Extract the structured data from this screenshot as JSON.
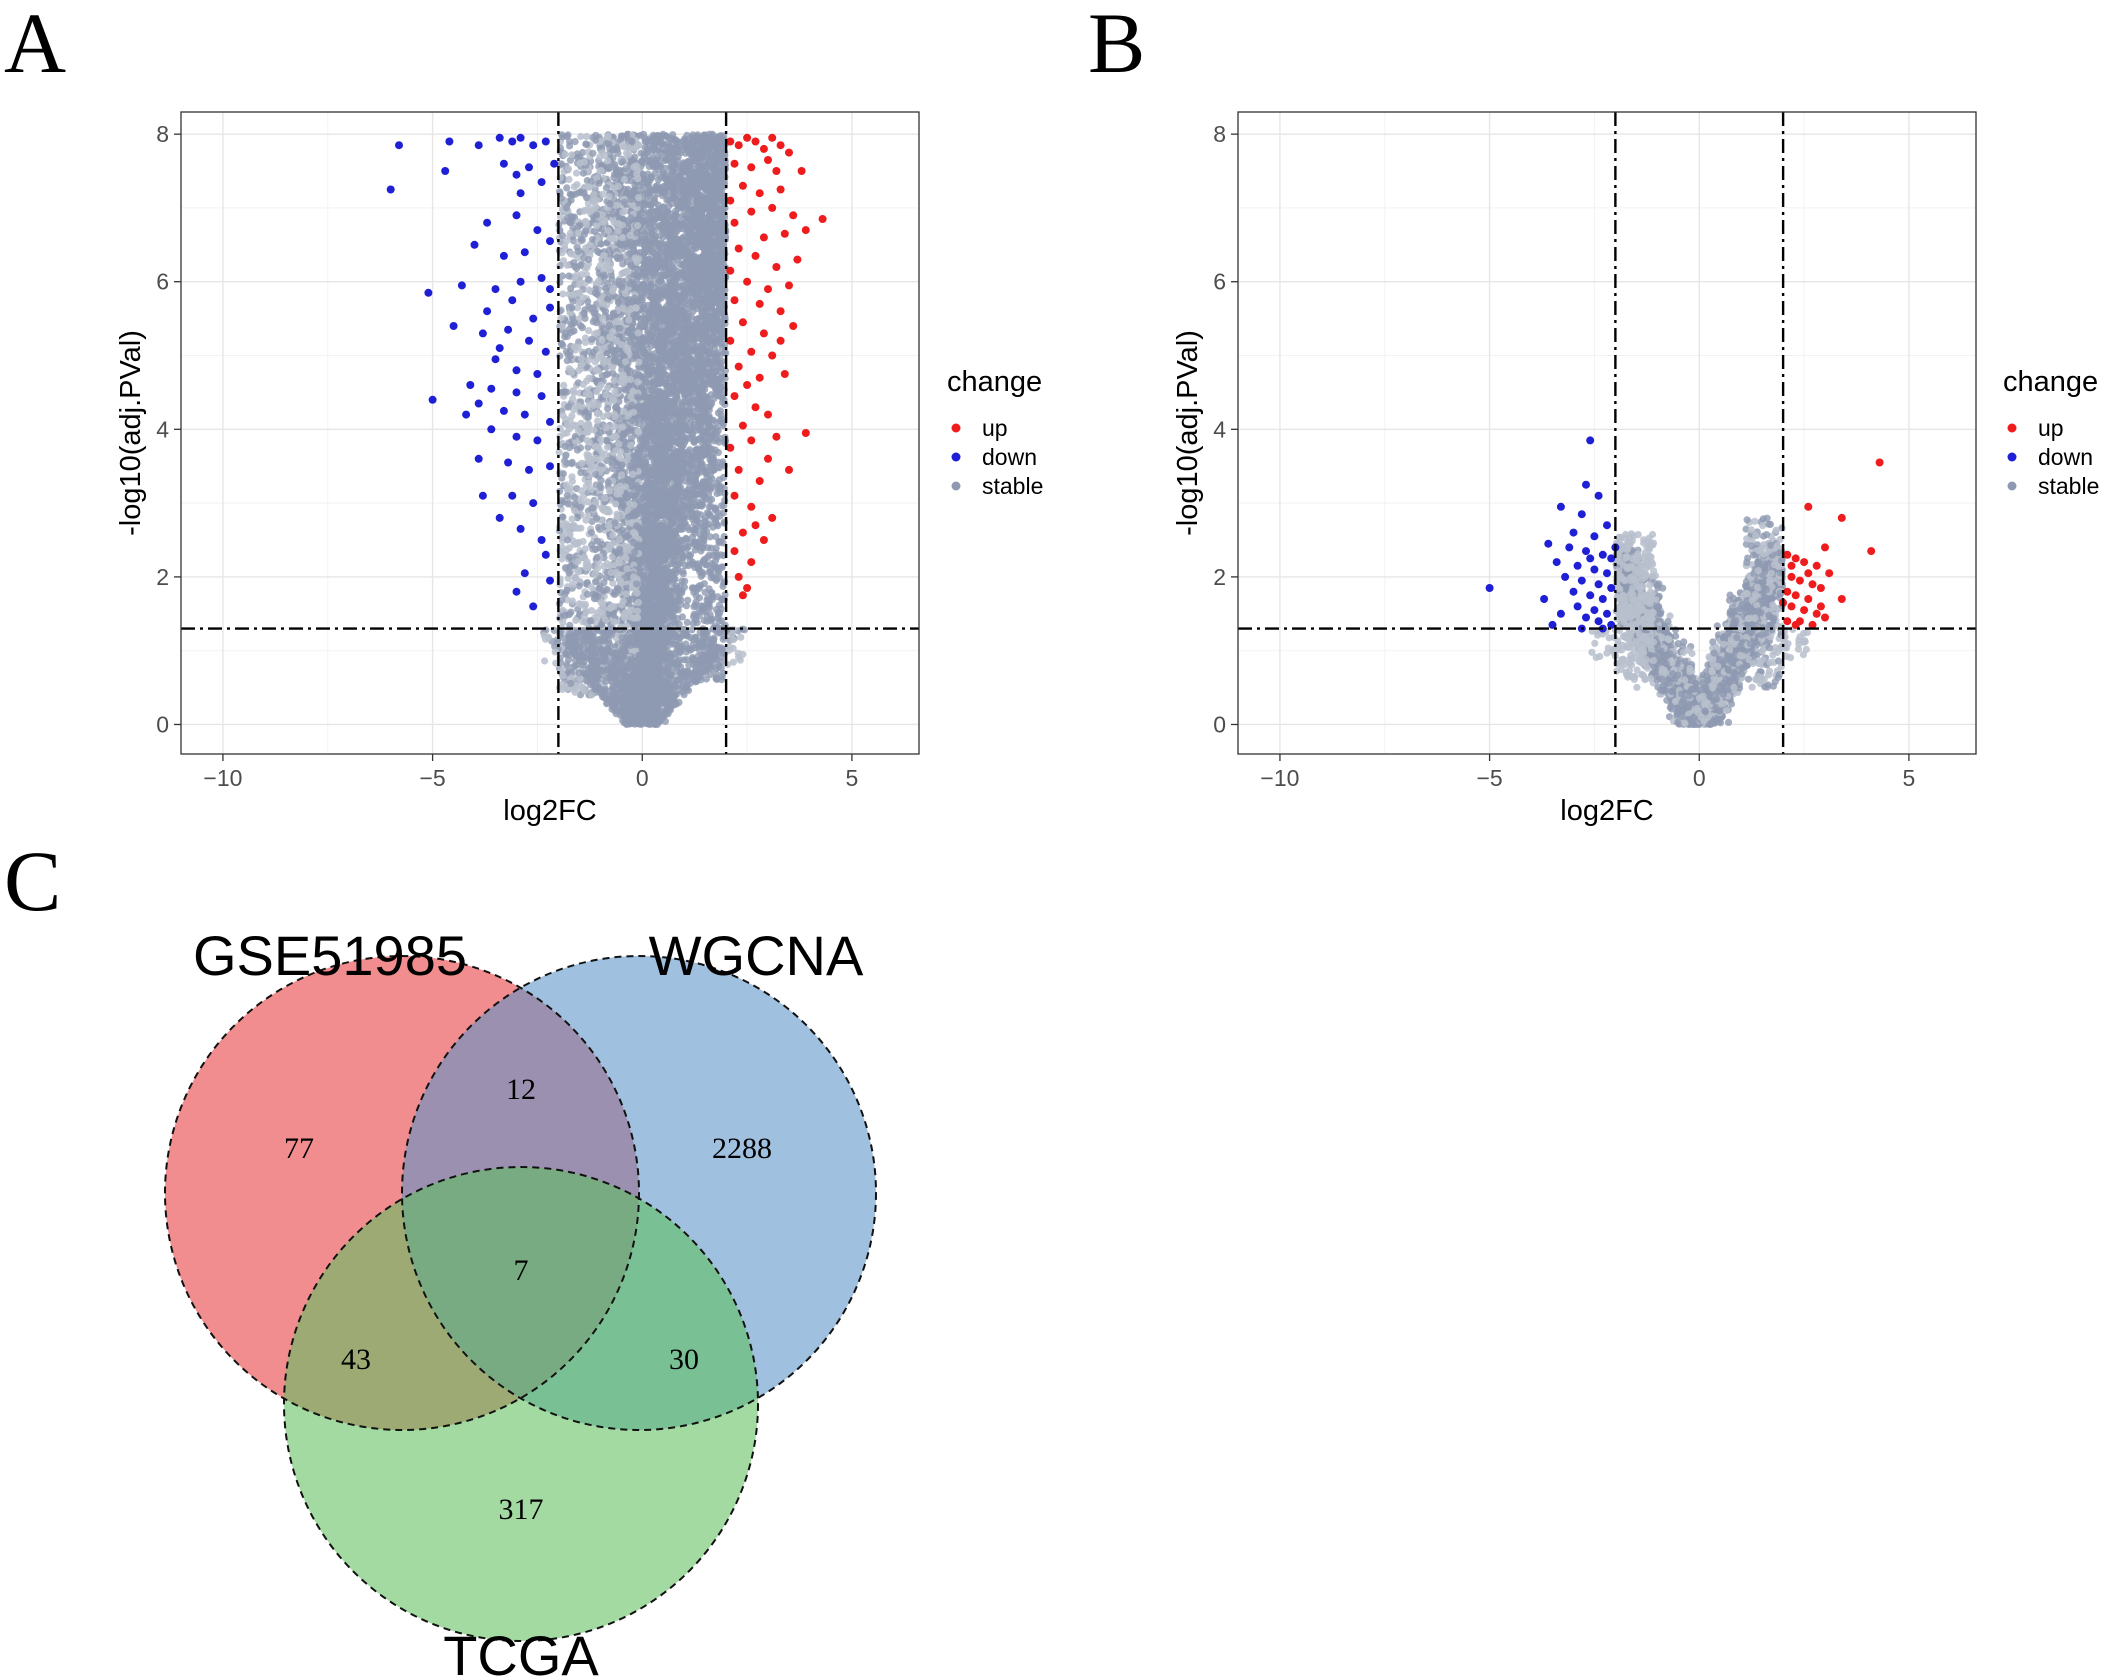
{
  "panels": {
    "a_label": "A",
    "b_label": "B",
    "c_label": "C"
  },
  "colors": {
    "up": "#ee1c1c",
    "down": "#1f1fd6",
    "stable": "#8f9ab2",
    "stable_light": "#b9bfcc",
    "set1": "#ee8b8c",
    "set2": "#a0c1dd",
    "set3": "#a4d8a3"
  },
  "chart_data": [
    {
      "type": "scatter",
      "panel": "A",
      "title": "",
      "xlabel": "log2FC",
      "ylabel": "-log10(adj.PVal)",
      "xlim": [
        -11,
        6.6
      ],
      "ylim": [
        -0.4,
        8.3
      ],
      "xticks": [
        -10,
        -5,
        0,
        5
      ],
      "yticks": [
        0,
        2,
        4,
        6,
        8
      ],
      "xtick_labels": [
        "−10",
        "−5",
        "0",
        "5"
      ],
      "ytick_labels": [
        "0",
        "2",
        "4",
        "6",
        "8"
      ],
      "grid": true,
      "threshold_lines": {
        "x": [
          -2,
          2
        ],
        "y": 1.3,
        "style": "dot-dash"
      },
      "legend": {
        "title": "change",
        "position": "right",
        "entries": [
          {
            "label": "up",
            "color_key": "up"
          },
          {
            "label": "down",
            "color_key": "down"
          },
          {
            "label": "stable",
            "color_key": "stable"
          }
        ]
      },
      "series": [
        {
          "name": "up",
          "points": [
            [
              2.1,
              7.9
            ],
            [
              2.3,
              7.85
            ],
            [
              2.5,
              7.95
            ],
            [
              2.7,
              7.9
            ],
            [
              2.9,
              7.8
            ],
            [
              3.1,
              7.95
            ],
            [
              3.3,
              7.85
            ],
            [
              3.5,
              7.75
            ],
            [
              2.2,
              7.6
            ],
            [
              2.6,
              7.55
            ],
            [
              3.0,
              7.65
            ],
            [
              3.2,
              7.5
            ],
            [
              3.8,
              7.5
            ],
            [
              2.4,
              7.3
            ],
            [
              2.8,
              7.2
            ],
            [
              3.3,
              7.25
            ],
            [
              2.1,
              7.1
            ],
            [
              2.6,
              6.95
            ],
            [
              3.1,
              7.0
            ],
            [
              3.6,
              6.9
            ],
            [
              4.3,
              6.85
            ],
            [
              3.9,
              6.7
            ],
            [
              2.2,
              6.8
            ],
            [
              2.9,
              6.6
            ],
            [
              3.4,
              6.65
            ],
            [
              2.3,
              6.45
            ],
            [
              2.7,
              6.35
            ],
            [
              3.2,
              6.2
            ],
            [
              3.7,
              6.3
            ],
            [
              2.1,
              6.15
            ],
            [
              2.5,
              6.0
            ],
            [
              3.0,
              5.9
            ],
            [
              3.5,
              5.95
            ],
            [
              2.2,
              5.75
            ],
            [
              2.8,
              5.7
            ],
            [
              3.3,
              5.6
            ],
            [
              2.4,
              5.45
            ],
            [
              2.9,
              5.3
            ],
            [
              3.6,
              5.4
            ],
            [
              2.1,
              5.2
            ],
            [
              2.6,
              5.05
            ],
            [
              3.1,
              5.0
            ],
            [
              2.3,
              4.85
            ],
            [
              2.8,
              4.7
            ],
            [
              3.4,
              4.75
            ],
            [
              2.2,
              4.45
            ],
            [
              2.7,
              4.3
            ],
            [
              3.0,
              4.2
            ],
            [
              2.4,
              4.05
            ],
            [
              3.9,
              3.95
            ],
            [
              2.6,
              3.85
            ],
            [
              2.1,
              3.75
            ],
            [
              3.0,
              3.6
            ],
            [
              2.3,
              3.45
            ],
            [
              3.5,
              3.45
            ],
            [
              2.8,
              3.3
            ],
            [
              2.2,
              3.1
            ],
            [
              2.6,
              2.95
            ],
            [
              3.1,
              2.8
            ],
            [
              2.4,
              2.6
            ],
            [
              2.9,
              2.5
            ],
            [
              2.2,
              2.35
            ],
            [
              2.6,
              2.2
            ],
            [
              2.3,
              2.0
            ],
            [
              2.5,
              1.85
            ],
            [
              2.4,
              1.75
            ],
            [
              2.7,
              2.7
            ],
            [
              3.2,
              3.9
            ],
            [
              2.5,
              4.6
            ],
            [
              3.3,
              5.2
            ]
          ]
        },
        {
          "name": "down",
          "points": [
            [
              -5.8,
              7.85
            ],
            [
              -4.6,
              7.9
            ],
            [
              -3.9,
              7.85
            ],
            [
              -3.4,
              7.95
            ],
            [
              -3.1,
              7.9
            ],
            [
              -2.9,
              7.95
            ],
            [
              -2.6,
              7.85
            ],
            [
              -2.3,
              7.9
            ],
            [
              -6.0,
              7.25
            ],
            [
              -4.7,
              7.5
            ],
            [
              -3.3,
              7.6
            ],
            [
              -3.0,
              7.45
            ],
            [
              -2.7,
              7.55
            ],
            [
              -2.4,
              7.35
            ],
            [
              -2.1,
              7.6
            ],
            [
              -3.7,
              6.8
            ],
            [
              -3.0,
              6.9
            ],
            [
              -2.5,
              6.7
            ],
            [
              -2.2,
              6.55
            ],
            [
              -4.0,
              6.5
            ],
            [
              -3.3,
              6.35
            ],
            [
              -2.8,
              6.4
            ],
            [
              -4.3,
              5.95
            ],
            [
              -3.5,
              5.9
            ],
            [
              -2.9,
              6.0
            ],
            [
              -2.4,
              6.05
            ],
            [
              -5.1,
              5.85
            ],
            [
              -3.7,
              5.6
            ],
            [
              -3.1,
              5.75
            ],
            [
              -2.6,
              5.5
            ],
            [
              -2.2,
              5.65
            ],
            [
              -4.5,
              5.4
            ],
            [
              -3.8,
              5.3
            ],
            [
              -3.2,
              5.35
            ],
            [
              -2.7,
              5.2
            ],
            [
              -2.3,
              5.05
            ],
            [
              -3.5,
              4.95
            ],
            [
              -3.0,
              4.8
            ],
            [
              -2.5,
              4.75
            ],
            [
              -4.1,
              4.6
            ],
            [
              -3.6,
              4.55
            ],
            [
              -3.0,
              4.5
            ],
            [
              -2.4,
              4.45
            ],
            [
              -5.0,
              4.4
            ],
            [
              -3.9,
              4.35
            ],
            [
              -3.3,
              4.25
            ],
            [
              -2.8,
              4.2
            ],
            [
              -2.2,
              4.1
            ],
            [
              -3.6,
              4.0
            ],
            [
              -3.0,
              3.9
            ],
            [
              -2.5,
              3.85
            ],
            [
              -3.9,
              3.6
            ],
            [
              -3.2,
              3.55
            ],
            [
              -2.7,
              3.45
            ],
            [
              -2.2,
              3.5
            ],
            [
              -3.1,
              3.1
            ],
            [
              -2.6,
              3.0
            ],
            [
              -3.4,
              2.8
            ],
            [
              -2.9,
              2.65
            ],
            [
              -2.4,
              2.5
            ],
            [
              -2.3,
              2.3
            ],
            [
              -2.8,
              2.05
            ],
            [
              -3.0,
              1.8
            ],
            [
              -2.6,
              1.6
            ],
            [
              -2.2,
              1.95
            ],
            [
              -3.8,
              3.1
            ],
            [
              -4.2,
              4.2
            ],
            [
              -3.4,
              5.1
            ],
            [
              -2.9,
              7.2
            ],
            [
              -2.2,
              5.9
            ]
          ]
        }
      ]
    },
    {
      "type": "scatter",
      "panel": "B",
      "title": "",
      "xlabel": "log2FC",
      "ylabel": "-log10(adj.PVal)",
      "xlim": [
        -11,
        6.6
      ],
      "ylim": [
        -0.4,
        8.3
      ],
      "xticks": [
        -10,
        -5,
        0,
        5
      ],
      "yticks": [
        0,
        2,
        4,
        6,
        8
      ],
      "xtick_labels": [
        "−10",
        "−5",
        "0",
        "5"
      ],
      "ytick_labels": [
        "0",
        "2",
        "4",
        "6",
        "8"
      ],
      "grid": true,
      "threshold_lines": {
        "x": [
          -2,
          2
        ],
        "y": 1.3,
        "style": "dot-dash"
      },
      "legend": {
        "title": "change",
        "position": "right",
        "entries": [
          {
            "label": "up",
            "color_key": "up"
          },
          {
            "label": "down",
            "color_key": "down"
          },
          {
            "label": "stable",
            "color_key": "stable"
          }
        ]
      },
      "series": [
        {
          "name": "up",
          "points": [
            [
              4.3,
              3.55
            ],
            [
              3.4,
              2.8
            ],
            [
              2.6,
              2.95
            ],
            [
              4.1,
              2.35
            ],
            [
              3.0,
              2.4
            ],
            [
              2.1,
              2.3
            ],
            [
              2.3,
              2.25
            ],
            [
              2.5,
              2.2
            ],
            [
              2.8,
              2.15
            ],
            [
              3.1,
              2.05
            ],
            [
              2.2,
              2.0
            ],
            [
              2.4,
              1.95
            ],
            [
              2.7,
              1.9
            ],
            [
              2.9,
              1.85
            ],
            [
              2.1,
              1.8
            ],
            [
              2.3,
              1.75
            ],
            [
              2.6,
              1.7
            ],
            [
              3.4,
              1.7
            ],
            [
              2.0,
              1.65
            ],
            [
              2.2,
              1.6
            ],
            [
              2.5,
              1.55
            ],
            [
              2.8,
              1.5
            ],
            [
              3.0,
              1.45
            ],
            [
              2.1,
              1.4
            ],
            [
              2.4,
              1.4
            ],
            [
              2.7,
              1.35
            ],
            [
              2.3,
              1.35
            ],
            [
              2.9,
              1.6
            ],
            [
              2.6,
              2.05
            ],
            [
              2.2,
              2.15
            ]
          ]
        },
        {
          "name": "down",
          "points": [
            [
              -2.6,
              3.85
            ],
            [
              -2.7,
              3.25
            ],
            [
              -2.4,
              3.1
            ],
            [
              -3.3,
              2.95
            ],
            [
              -2.8,
              2.85
            ],
            [
              -2.2,
              2.7
            ],
            [
              -3.0,
              2.6
            ],
            [
              -2.5,
              2.55
            ],
            [
              -3.6,
              2.45
            ],
            [
              -3.1,
              2.4
            ],
            [
              -2.7,
              2.35
            ],
            [
              -2.3,
              2.3
            ],
            [
              -2.1,
              2.25
            ],
            [
              -3.4,
              2.2
            ],
            [
              -2.9,
              2.15
            ],
            [
              -2.5,
              2.1
            ],
            [
              -2.2,
              2.05
            ],
            [
              -3.2,
              2.0
            ],
            [
              -2.8,
              1.95
            ],
            [
              -2.4,
              1.9
            ],
            [
              -2.1,
              1.85
            ],
            [
              -3.0,
              1.8
            ],
            [
              -2.6,
              1.75
            ],
            [
              -2.3,
              1.7
            ],
            [
              -3.7,
              1.7
            ],
            [
              -2.9,
              1.6
            ],
            [
              -2.5,
              1.55
            ],
            [
              -2.2,
              1.5
            ],
            [
              -3.3,
              1.5
            ],
            [
              -2.7,
              1.45
            ],
            [
              -2.4,
              1.4
            ],
            [
              -2.1,
              1.35
            ],
            [
              -3.5,
              1.35
            ],
            [
              -2.8,
              1.3
            ],
            [
              -5.0,
              1.85
            ],
            [
              -2.3,
              1.3
            ],
            [
              -2.6,
              2.25
            ],
            [
              -2.0,
              2.4
            ]
          ]
        }
      ]
    },
    {
      "type": "venn",
      "panel": "C",
      "title": "",
      "sets": [
        "GSE51985",
        "WGCNA",
        "TCGA"
      ],
      "regions": [
        {
          "sets": [
            "GSE51985"
          ],
          "count": 77
        },
        {
          "sets": [
            "WGCNA"
          ],
          "count": 2288
        },
        {
          "sets": [
            "TCGA"
          ],
          "count": 317
        },
        {
          "sets": [
            "GSE51985",
            "WGCNA"
          ],
          "count": 12
        },
        {
          "sets": [
            "GSE51985",
            "TCGA"
          ],
          "count": 43
        },
        {
          "sets": [
            "WGCNA",
            "TCGA"
          ],
          "count": 30
        },
        {
          "sets": [
            "GSE51985",
            "WGCNA",
            "TCGA"
          ],
          "count": 7
        }
      ]
    }
  ]
}
